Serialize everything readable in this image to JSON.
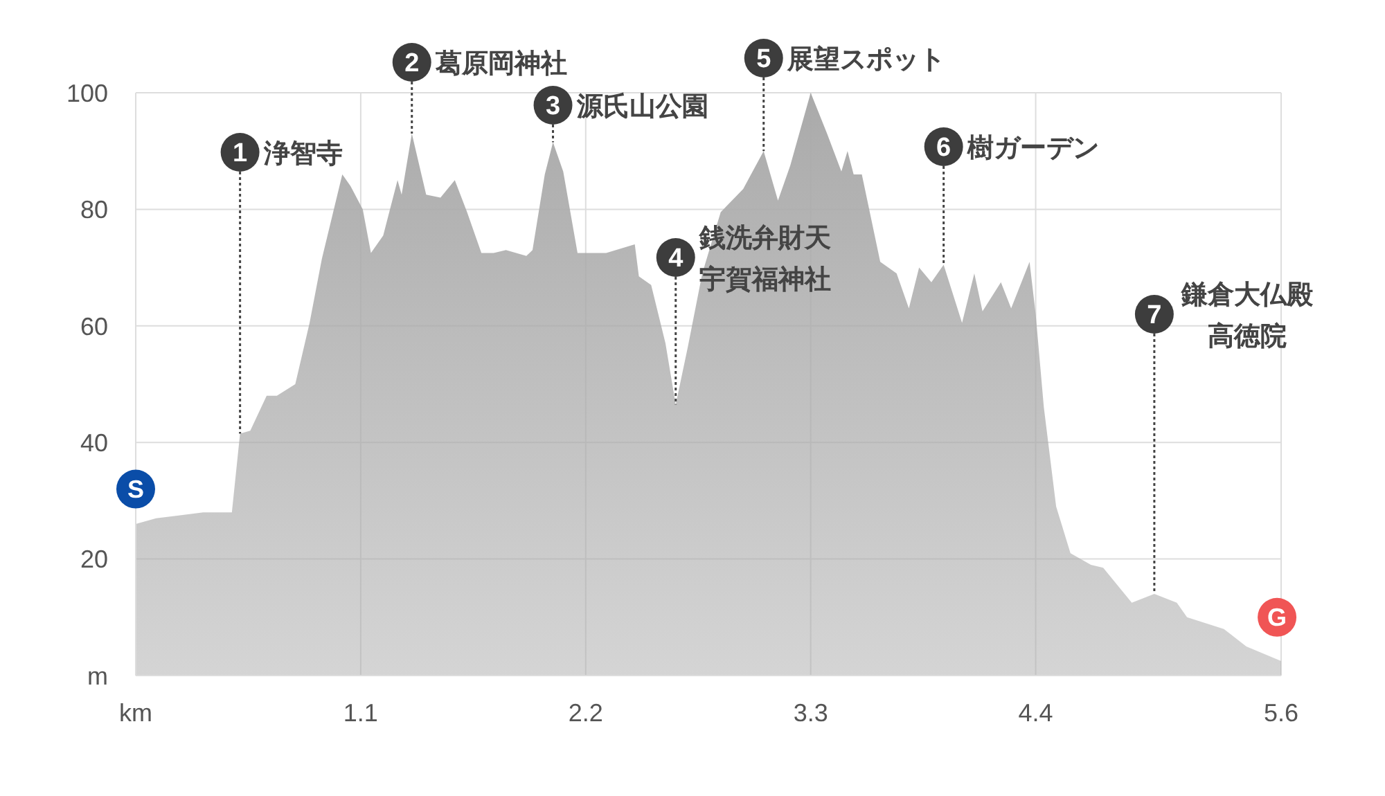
{
  "chart_data": {
    "type": "area",
    "x": [
      0,
      0.1,
      0.33,
      0.47,
      0.51,
      0.56,
      0.64,
      0.69,
      0.78,
      0.85,
      0.91,
      1.01,
      1.05,
      1.11,
      1.15,
      1.21,
      1.28,
      1.3,
      1.35,
      1.42,
      1.49,
      1.56,
      1.62,
      1.69,
      1.75,
      1.81,
      1.91,
      1.94,
      2.0,
      2.04,
      2.09,
      2.16,
      2.3,
      2.44,
      2.46,
      2.52,
      2.59,
      2.64,
      2.7,
      2.77,
      2.86,
      2.97,
      3.07,
      3.14,
      3.2,
      3.3,
      3.38,
      3.45,
      3.48,
      3.51,
      3.55,
      3.64,
      3.72,
      3.78,
      3.83,
      3.89,
      3.95,
      4.04,
      4.1,
      4.14,
      4.23,
      4.28,
      4.37,
      4.4,
      4.44,
      4.5,
      4.57,
      4.67,
      4.73,
      4.87,
      4.98,
      5.09,
      5.14,
      5.32,
      5.43,
      5.6
    ],
    "series": [
      {
        "color": "#aaaaaa",
        "values": [
          26,
          27,
          28,
          28,
          41.5,
          42,
          48,
          48,
          50,
          60.5,
          71.5,
          86,
          84,
          80,
          72.5,
          75.5,
          85,
          82.5,
          93,
          82.5,
          82,
          85,
          79.5,
          72.5,
          72.5,
          73,
          72,
          73,
          86,
          91.5,
          86.5,
          72.5,
          72.5,
          74,
          68.5,
          67,
          57,
          46.5,
          56.5,
          69,
          79.5,
          83.5,
          90,
          81.5,
          87.5,
          100,
          93,
          86.5,
          90,
          86,
          86,
          71,
          69,
          63,
          70,
          67.5,
          70.5,
          60.5,
          69,
          62.5,
          67.5,
          63,
          71,
          62,
          46,
          29,
          21,
          19,
          18.5,
          12.5,
          14,
          12.5,
          10,
          8,
          5,
          2.5
        ]
      }
    ],
    "xlim": [
      0,
      5.6
    ],
    "xticks": [
      {
        "value": 0,
        "label": "km"
      },
      1.1,
      2.2,
      3.3,
      4.4,
      5.6
    ],
    "ylim": [
      0,
      100
    ],
    "yticks": [
      {
        "value": 0,
        "label": "m"
      },
      20,
      40,
      60,
      80,
      100
    ],
    "grid": true,
    "annotations": [
      {
        "text": "1 浄智寺",
        "x": 0.51,
        "y": 41.5
      },
      {
        "text": "2 葛原岡神社",
        "x": 1.35,
        "y": 93
      },
      {
        "text": "3 源氏山公園",
        "x": 2.04,
        "y": 91.5
      },
      {
        "text": "4 銭洗弁財天宇賀福神社",
        "x": 2.64,
        "y": 46.5
      },
      {
        "text": "5 展望スポット",
        "x": 3.07,
        "y": 90
      },
      {
        "text": "6 樹ガーデン",
        "x": 3.95,
        "y": 70.5
      },
      {
        "text": "7 鎌倉大仏殿高徳院",
        "x": 4.98,
        "y": 14
      },
      {
        "text": "S",
        "x": 0,
        "y": 32
      },
      {
        "text": "G",
        "x": 5.58,
        "y": 10
      }
    ]
  }
}
